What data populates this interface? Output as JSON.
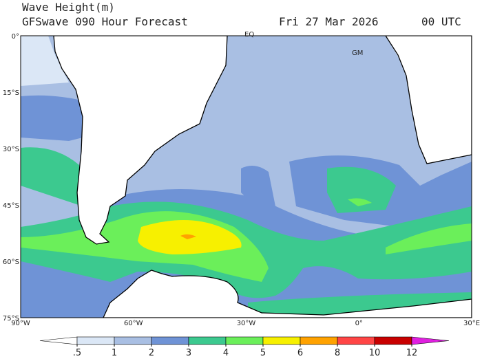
{
  "header": {
    "title": "Wave Height(m)",
    "subtitle": "GFSwave 090 Hour Forecast",
    "date": "Fri 27 Mar 2026",
    "time": "00 UTC"
  },
  "map": {
    "lat_labels": [
      "0°",
      "15°S",
      "30°S",
      "45°S",
      "60°S",
      "75°S"
    ],
    "lon_labels": [
      "90°W",
      "60°W",
      "30°W",
      "0°",
      "30°E"
    ],
    "annotations": [
      "EQ",
      "GM"
    ]
  },
  "colorbar": {
    "ticks": [
      {
        "value": 0.5,
        "label": ".5"
      },
      1,
      2,
      3,
      4,
      5,
      6,
      8,
      10,
      12
    ],
    "colors": [
      "#ffffff",
      "#dbe7f6",
      "#a9bfe3",
      "#6f93d6",
      "#3cc98f",
      "#6bef5a",
      "#f7f000",
      "#ffa200",
      "#ff4545",
      "#c80000",
      "#e020e0"
    ]
  }
}
